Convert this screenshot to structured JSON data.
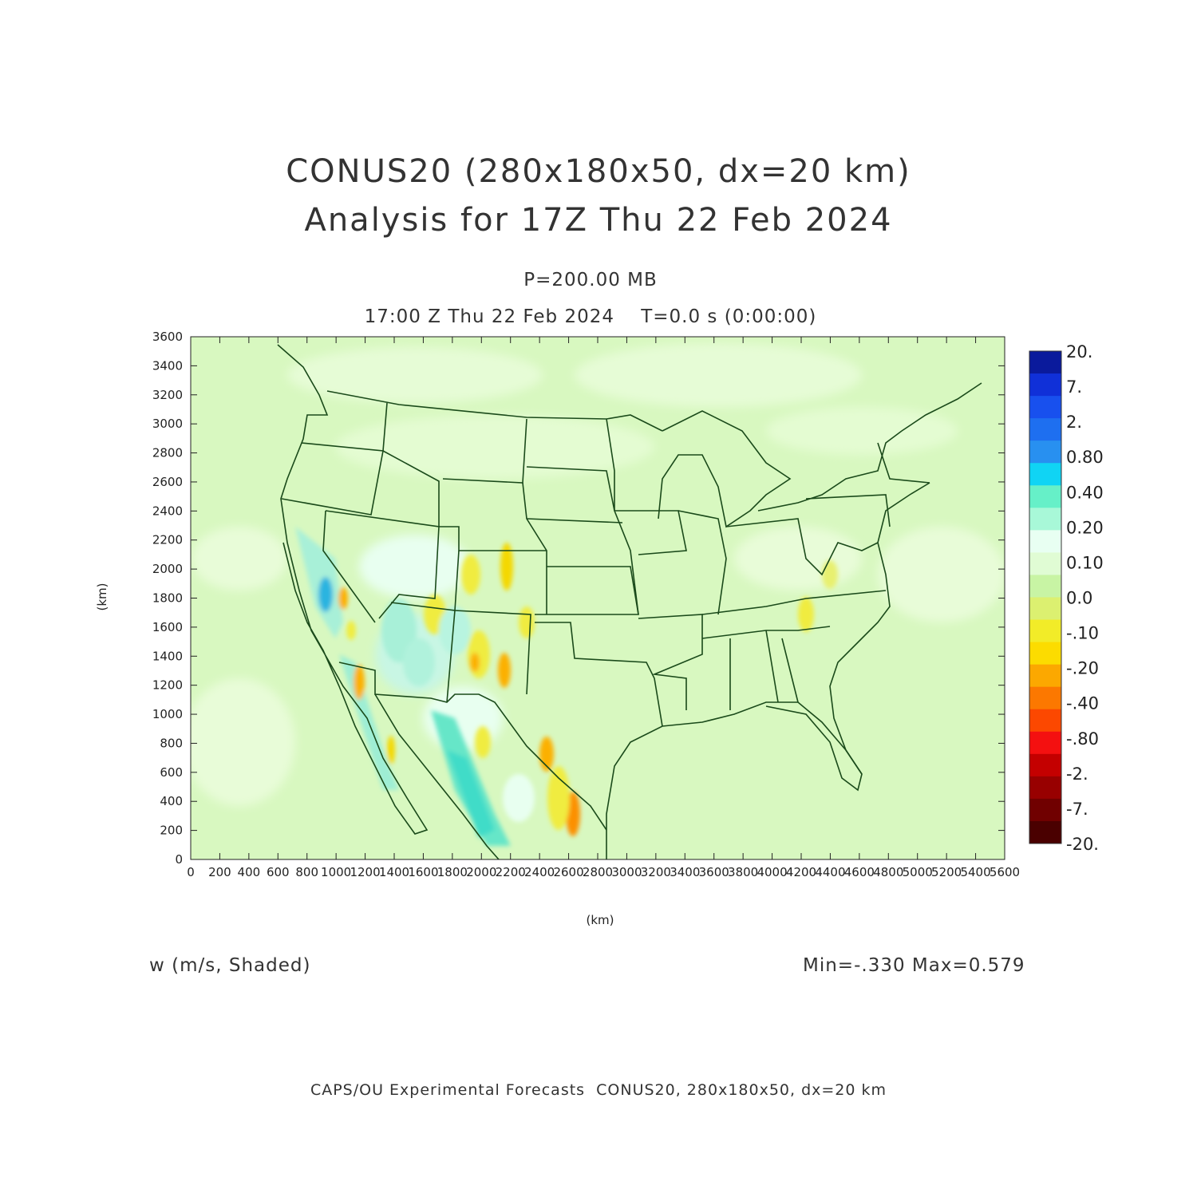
{
  "header": {
    "title_line1": "CONUS20 (280x180x50, dx=20 km)",
    "title_line2": "Analysis for 17Z Thu 22 Feb 2024",
    "pressure_level": "P=200.00 MB",
    "valid_time": "17:00 Z Thu 22 Feb 2024    T=0.0 s (0:00:00)"
  },
  "axes": {
    "x_label": "(km)",
    "y_label": "(km)",
    "x_ticks": [
      "0",
      "200",
      "400",
      "600",
      "800",
      "1000",
      "1200",
      "1400",
      "1600",
      "1800",
      "2000",
      "2200",
      "2400",
      "2600",
      "2800",
      "3000",
      "3200",
      "3400",
      "3600",
      "3800",
      "4000",
      "4200",
      "4400",
      "4600",
      "4800",
      "5000",
      "5200",
      "5400",
      "5600"
    ],
    "y_ticks": [
      "0",
      "200",
      "400",
      "600",
      "800",
      "1000",
      "1200",
      "1400",
      "1600",
      "1800",
      "2000",
      "2200",
      "2400",
      "2600",
      "2800",
      "3000",
      "3200",
      "3400",
      "3600"
    ],
    "x_range": [
      0,
      5600
    ],
    "y_range": [
      0,
      3600
    ]
  },
  "colorbar": {
    "labels": [
      "20.",
      "7.",
      "2.",
      "0.80",
      "0.40",
      "0.20",
      "0.10",
      "0.0",
      "-.10",
      "-.20",
      "-.40",
      "-.80",
      "-2.",
      "-7.",
      "-20."
    ],
    "colors": [
      "#0a1a9c",
      "#1030d8",
      "#1850ee",
      "#1e6ff0",
      "#2890f0",
      "#10d4f4",
      "#66f0c8",
      "#a8f8d8",
      "#e8fff2",
      "#e0fcd4",
      "#c8f4a4",
      "#dcf070",
      "#f2ec28",
      "#fcdc00",
      "#fca800",
      "#fc7800",
      "#fc4800",
      "#f41010",
      "#c40000",
      "#980000",
      "#700000",
      "#4a0000"
    ]
  },
  "chart_data": {
    "type": "heatmap",
    "variable": "w (m/s, Shaded)",
    "min": -0.33,
    "max": 0.579,
    "x_range_km": [
      0,
      5600
    ],
    "y_range_km": [
      0,
      3600
    ]
  },
  "footer": {
    "variable_label": "w (m/s, Shaded)",
    "minmax_label": "Min=-.330 Max=0.579",
    "credit": "CAPS/OU Experimental Forecasts  CONUS20, 280x180x50, dx=20 km"
  }
}
